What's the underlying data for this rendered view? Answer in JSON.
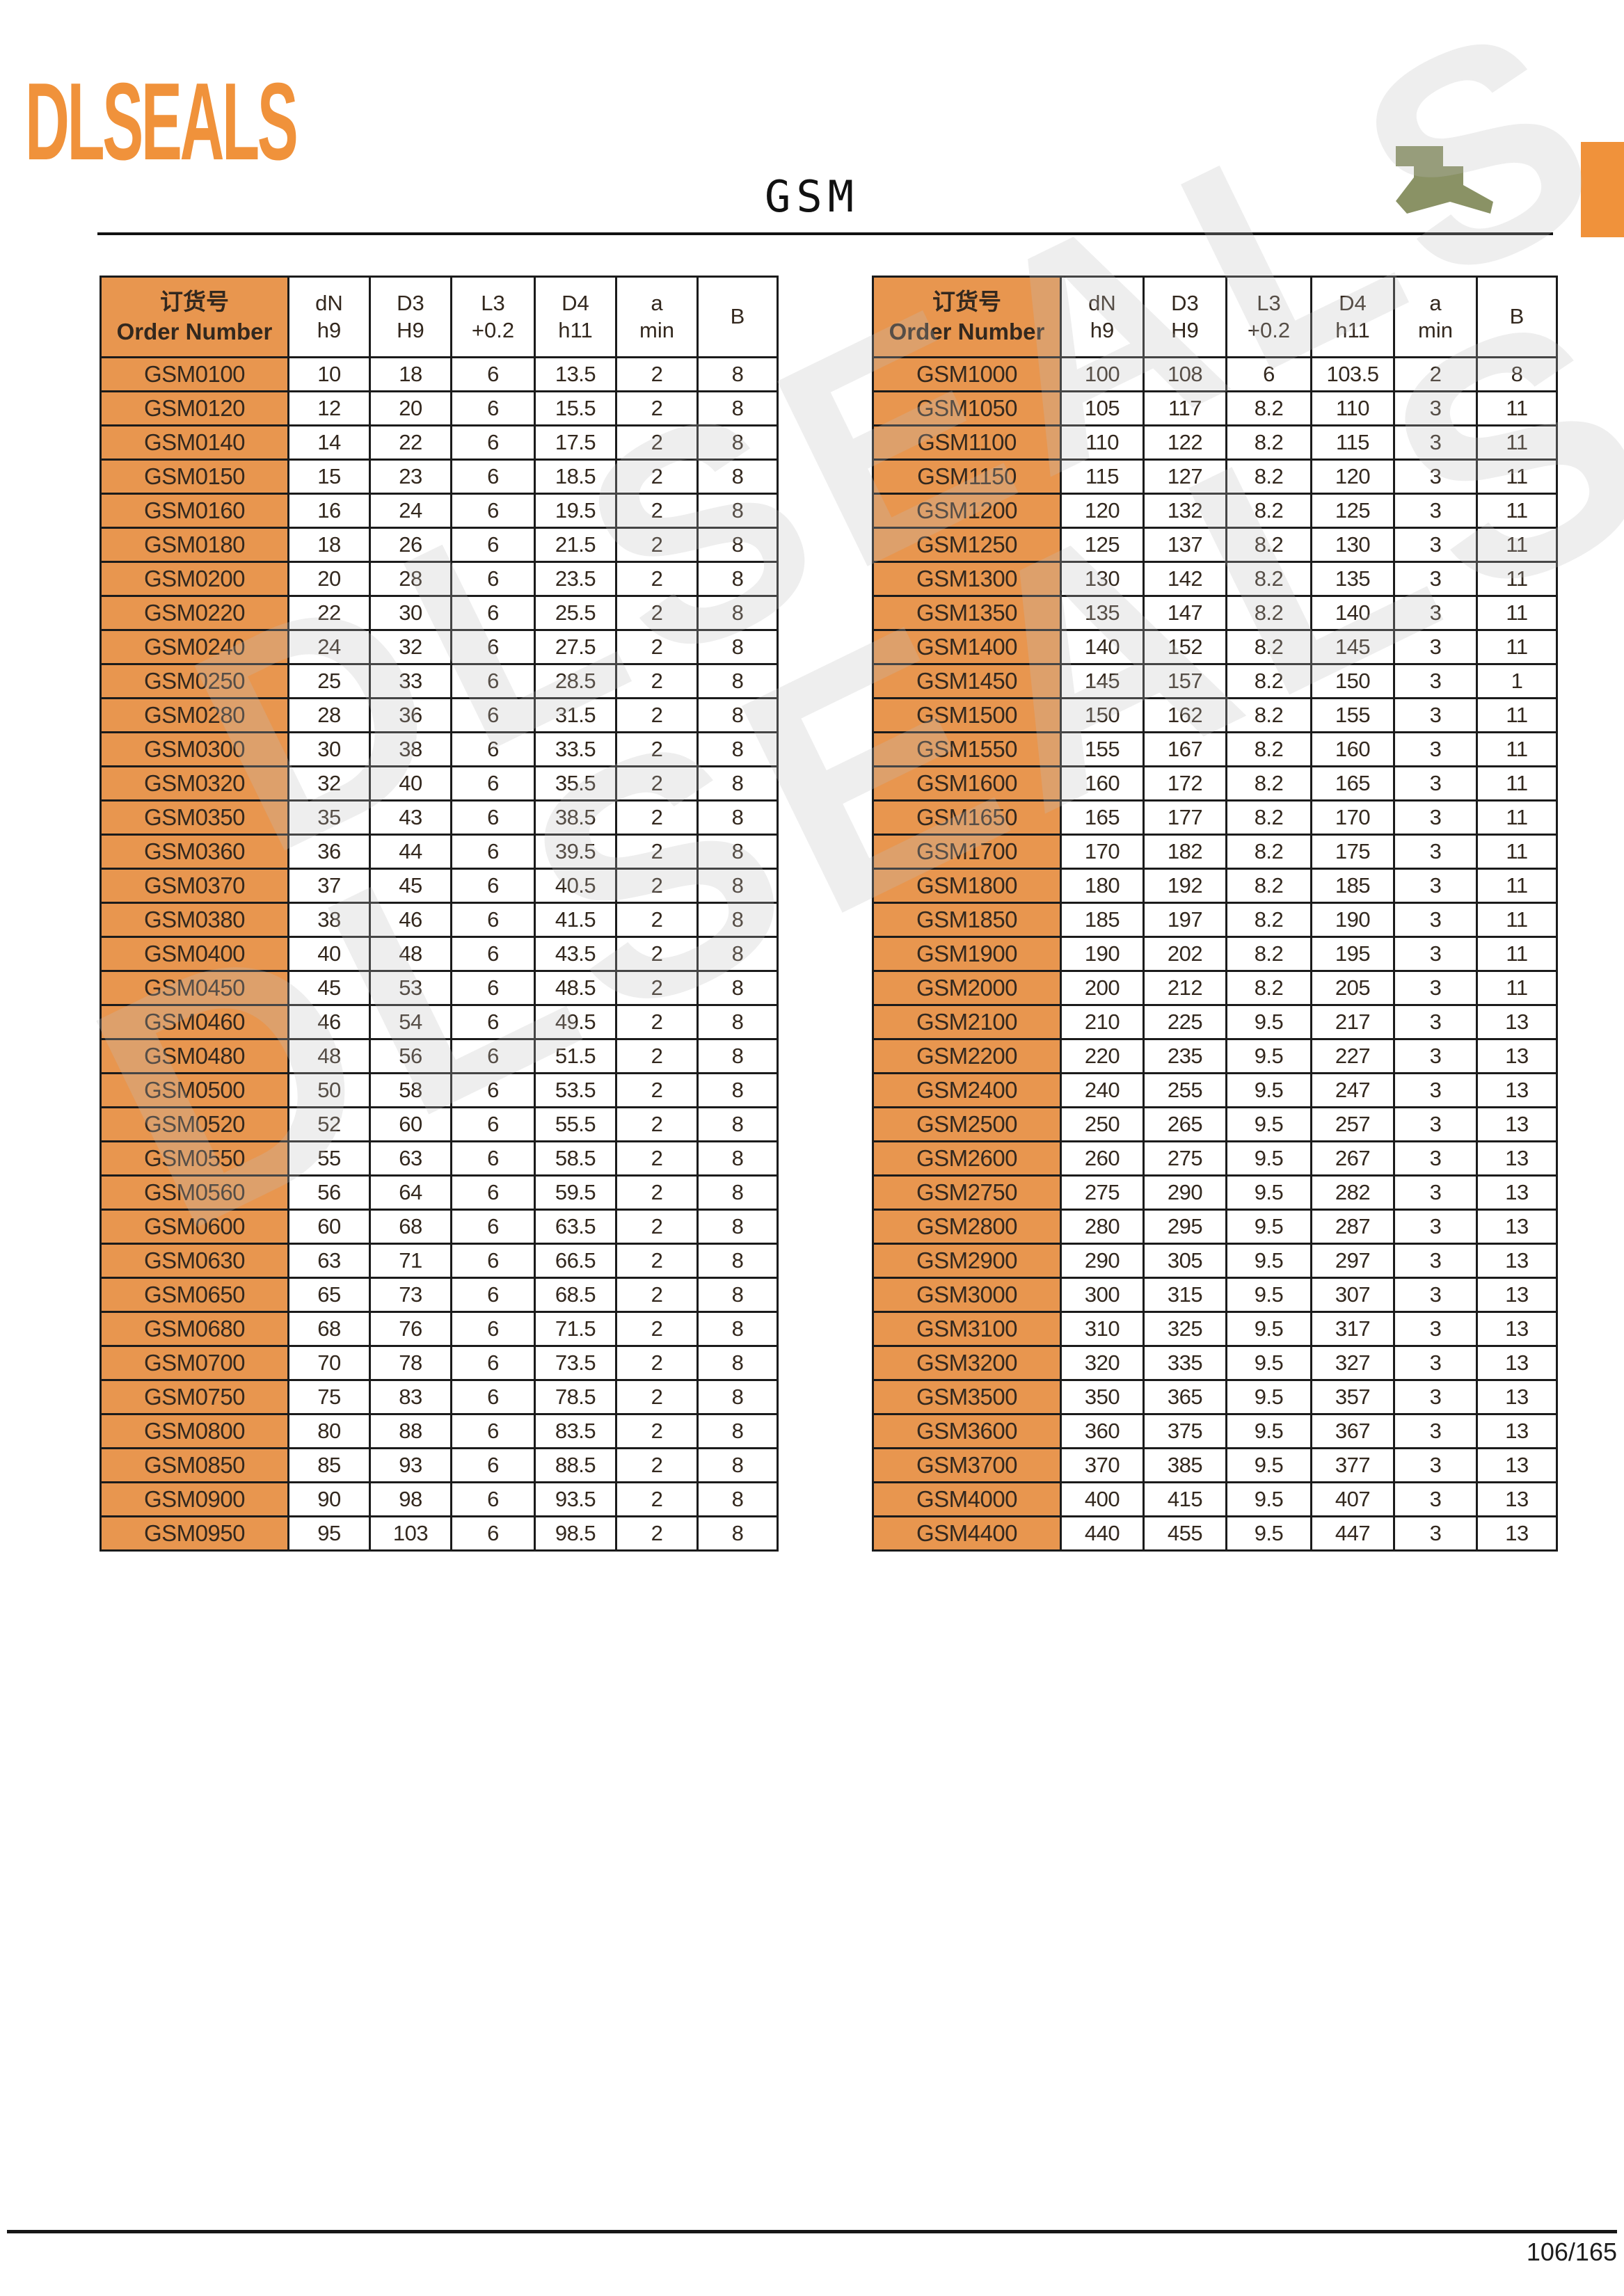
{
  "page": {
    "logo_text": "DLSEALS",
    "title": "GSM",
    "watermark_text": "DLSEALS",
    "page_number": "106/165"
  },
  "colors": {
    "logo_orange": "#F0923B",
    "accent_orange": "#E8964F",
    "seal_icon_green": "#8A9265"
  },
  "table_header": [
    [
      "订货号",
      "Order Number"
    ],
    [
      "dN",
      "h9"
    ],
    [
      "D3",
      "H9"
    ],
    [
      "L3",
      "+0.2"
    ],
    [
      "D4",
      "h11"
    ],
    [
      "a",
      "min"
    ],
    [
      "B"
    ]
  ],
  "left_table_rows": [
    [
      "GSM0100",
      "10",
      "18",
      "6",
      "13.5",
      "2",
      "8"
    ],
    [
      "GSM0120",
      "12",
      "20",
      "6",
      "15.5",
      "2",
      "8"
    ],
    [
      "GSM0140",
      "14",
      "22",
      "6",
      "17.5",
      "2",
      "8"
    ],
    [
      "GSM0150",
      "15",
      "23",
      "6",
      "18.5",
      "2",
      "8"
    ],
    [
      "GSM0160",
      "16",
      "24",
      "6",
      "19.5",
      "2",
      "8"
    ],
    [
      "GSM0180",
      "18",
      "26",
      "6",
      "21.5",
      "2",
      "8"
    ],
    [
      "GSM0200",
      "20",
      "28",
      "6",
      "23.5",
      "2",
      "8"
    ],
    [
      "GSM0220",
      "22",
      "30",
      "6",
      "25.5",
      "2",
      "8"
    ],
    [
      "GSM0240",
      "24",
      "32",
      "6",
      "27.5",
      "2",
      "8"
    ],
    [
      "GSM0250",
      "25",
      "33",
      "6",
      "28.5",
      "2",
      "8"
    ],
    [
      "GSM0280",
      "28",
      "36",
      "6",
      "31.5",
      "2",
      "8"
    ],
    [
      "GSM0300",
      "30",
      "38",
      "6",
      "33.5",
      "2",
      "8"
    ],
    [
      "GSM0320",
      "32",
      "40",
      "6",
      "35.5",
      "2",
      "8"
    ],
    [
      "GSM0350",
      "35",
      "43",
      "6",
      "38.5",
      "2",
      "8"
    ],
    [
      "GSM0360",
      "36",
      "44",
      "6",
      "39.5",
      "2",
      "8"
    ],
    [
      "GSM0370",
      "37",
      "45",
      "6",
      "40.5",
      "2",
      "8"
    ],
    [
      "GSM0380",
      "38",
      "46",
      "6",
      "41.5",
      "2",
      "8"
    ],
    [
      "GSM0400",
      "40",
      "48",
      "6",
      "43.5",
      "2",
      "8"
    ],
    [
      "GSM0450",
      "45",
      "53",
      "6",
      "48.5",
      "2",
      "8"
    ],
    [
      "GSM0460",
      "46",
      "54",
      "6",
      "49.5",
      "2",
      "8"
    ],
    [
      "GSM0480",
      "48",
      "56",
      "6",
      "51.5",
      "2",
      "8"
    ],
    [
      "GSM0500",
      "50",
      "58",
      "6",
      "53.5",
      "2",
      "8"
    ],
    [
      "GSM0520",
      "52",
      "60",
      "6",
      "55.5",
      "2",
      "8"
    ],
    [
      "GSM0550",
      "55",
      "63",
      "6",
      "58.5",
      "2",
      "8"
    ],
    [
      "GSM0560",
      "56",
      "64",
      "6",
      "59.5",
      "2",
      "8"
    ],
    [
      "GSM0600",
      "60",
      "68",
      "6",
      "63.5",
      "2",
      "8"
    ],
    [
      "GSM0630",
      "63",
      "71",
      "6",
      "66.5",
      "2",
      "8"
    ],
    [
      "GSM0650",
      "65",
      "73",
      "6",
      "68.5",
      "2",
      "8"
    ],
    [
      "GSM0680",
      "68",
      "76",
      "6",
      "71.5",
      "2",
      "8"
    ],
    [
      "GSM0700",
      "70",
      "78",
      "6",
      "73.5",
      "2",
      "8"
    ],
    [
      "GSM0750",
      "75",
      "83",
      "6",
      "78.5",
      "2",
      "8"
    ],
    [
      "GSM0800",
      "80",
      "88",
      "6",
      "83.5",
      "2",
      "8"
    ],
    [
      "GSM0850",
      "85",
      "93",
      "6",
      "88.5",
      "2",
      "8"
    ],
    [
      "GSM0900",
      "90",
      "98",
      "6",
      "93.5",
      "2",
      "8"
    ],
    [
      "GSM0950",
      "95",
      "103",
      "6",
      "98.5",
      "2",
      "8"
    ]
  ],
  "right_table_rows": [
    [
      "GSM1000",
      "100",
      "108",
      "6",
      "103.5",
      "2",
      "8"
    ],
    [
      "GSM1050",
      "105",
      "117",
      "8.2",
      "110",
      "3",
      "11"
    ],
    [
      "GSM1100",
      "110",
      "122",
      "8.2",
      "115",
      "3",
      "11"
    ],
    [
      "GSM1150",
      "115",
      "127",
      "8.2",
      "120",
      "3",
      "11"
    ],
    [
      "GSM1200",
      "120",
      "132",
      "8.2",
      "125",
      "3",
      "11"
    ],
    [
      "GSM1250",
      "125",
      "137",
      "8.2",
      "130",
      "3",
      "11"
    ],
    [
      "GSM1300",
      "130",
      "142",
      "8.2",
      "135",
      "3",
      "11"
    ],
    [
      "GSM1350",
      "135",
      "147",
      "8.2",
      "140",
      "3",
      "11"
    ],
    [
      "GSM1400",
      "140",
      "152",
      "8.2",
      "145",
      "3",
      "11"
    ],
    [
      "GSM1450",
      "145",
      "157",
      "8.2",
      "150",
      "3",
      "1"
    ],
    [
      "GSM1500",
      "150",
      "162",
      "8.2",
      "155",
      "3",
      "11"
    ],
    [
      "GSM1550",
      "155",
      "167",
      "8.2",
      "160",
      "3",
      "11"
    ],
    [
      "GSM1600",
      "160",
      "172",
      "8.2",
      "165",
      "3",
      "11"
    ],
    [
      "GSM1650",
      "165",
      "177",
      "8.2",
      "170",
      "3",
      "11"
    ],
    [
      "GSM1700",
      "170",
      "182",
      "8.2",
      "175",
      "3",
      "11"
    ],
    [
      "GSM1800",
      "180",
      "192",
      "8.2",
      "185",
      "3",
      "11"
    ],
    [
      "GSM1850",
      "185",
      "197",
      "8.2",
      "190",
      "3",
      "11"
    ],
    [
      "GSM1900",
      "190",
      "202",
      "8.2",
      "195",
      "3",
      "11"
    ],
    [
      "GSM2000",
      "200",
      "212",
      "8.2",
      "205",
      "3",
      "11"
    ],
    [
      "GSM2100",
      "210",
      "225",
      "9.5",
      "217",
      "3",
      "13"
    ],
    [
      "GSM2200",
      "220",
      "235",
      "9.5",
      "227",
      "3",
      "13"
    ],
    [
      "GSM2400",
      "240",
      "255",
      "9.5",
      "247",
      "3",
      "13"
    ],
    [
      "GSM2500",
      "250",
      "265",
      "9.5",
      "257",
      "3",
      "13"
    ],
    [
      "GSM2600",
      "260",
      "275",
      "9.5",
      "267",
      "3",
      "13"
    ],
    [
      "GSM2750",
      "275",
      "290",
      "9.5",
      "282",
      "3",
      "13"
    ],
    [
      "GSM2800",
      "280",
      "295",
      "9.5",
      "287",
      "3",
      "13"
    ],
    [
      "GSM2900",
      "290",
      "305",
      "9.5",
      "297",
      "3",
      "13"
    ],
    [
      "GSM3000",
      "300",
      "315",
      "9.5",
      "307",
      "3",
      "13"
    ],
    [
      "GSM3100",
      "310",
      "325",
      "9.5",
      "317",
      "3",
      "13"
    ],
    [
      "GSM3200",
      "320",
      "335",
      "9.5",
      "327",
      "3",
      "13"
    ],
    [
      "GSM3500",
      "350",
      "365",
      "9.5",
      "357",
      "3",
      "13"
    ],
    [
      "GSM3600",
      "360",
      "375",
      "9.5",
      "367",
      "3",
      "13"
    ],
    [
      "GSM3700",
      "370",
      "385",
      "9.5",
      "377",
      "3",
      "13"
    ],
    [
      "GSM4000",
      "400",
      "415",
      "9.5",
      "407",
      "3",
      "13"
    ],
    [
      "GSM4400",
      "440",
      "455",
      "9.5",
      "447",
      "3",
      "13"
    ]
  ]
}
